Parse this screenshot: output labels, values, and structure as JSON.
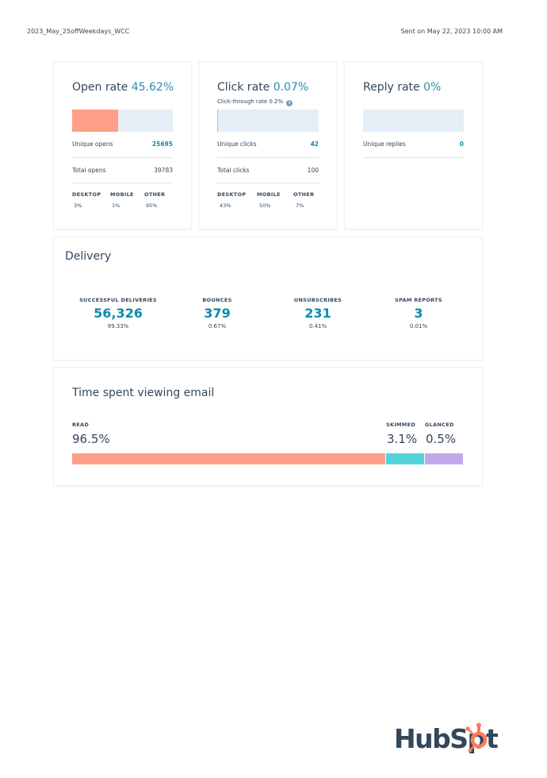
{
  "header": {
    "email_name": "2023_May_25offWeekdays_WCC",
    "sent_on": "Sent on May 22, 2023 10:00 AM"
  },
  "open_rate": {
    "title": "Open rate",
    "value": "45.62%",
    "rate_fraction": 0.4562,
    "unique_label": "Unique opens",
    "unique_value": "25695",
    "total_label": "Total opens",
    "total_value": "39783",
    "devices": [
      {
        "label": "DESKTOP",
        "value": "3%"
      },
      {
        "label": "MOBILE",
        "value": "1%"
      },
      {
        "label": "OTHER",
        "value": "95%"
      }
    ]
  },
  "click_rate": {
    "title": "Click rate",
    "value": "0.07%",
    "rate_fraction": 0.0007,
    "ctr_label": "Click-through rate 0.2%",
    "unique_label": "Unique clicks",
    "unique_value": "42",
    "total_label": "Total clicks",
    "total_value": "100",
    "devices": [
      {
        "label": "DESKTOP",
        "value": "43%"
      },
      {
        "label": "MOBILE",
        "value": "50%"
      },
      {
        "label": "OTHER",
        "value": "7%"
      }
    ]
  },
  "reply_rate": {
    "title": "Reply rate",
    "value": "0%",
    "rate_fraction": 0,
    "unique_label": "Unique replies",
    "unique_value": "0"
  },
  "delivery": {
    "title": "Delivery",
    "stats": [
      {
        "label": "SUCCESSFUL DELIVERIES",
        "value": "56,326",
        "pct": "99.33%"
      },
      {
        "label": "BOUNCES",
        "value": "379",
        "pct": "0.67%"
      },
      {
        "label": "UNSUBSCRIBES",
        "value": "231",
        "pct": "0.41%"
      },
      {
        "label": "SPAM REPORTS",
        "value": "3",
        "pct": "0.01%"
      }
    ]
  },
  "time_spent": {
    "title": "Time spent viewing email",
    "segments": [
      {
        "label": "READ",
        "value": "96.5%",
        "fraction": 0.965,
        "color": "#ff9f88"
      },
      {
        "label": "SKIMMED",
        "value": "3.1%",
        "fraction": 0.031,
        "color": "#51d3d9"
      },
      {
        "label": "GLANCED",
        "value": "0.5%",
        "fraction": 0.005,
        "color": "#c4a8eb"
      }
    ]
  },
  "brand": {
    "logo_text": "HubSpot",
    "accent": "#ff7a59"
  }
}
